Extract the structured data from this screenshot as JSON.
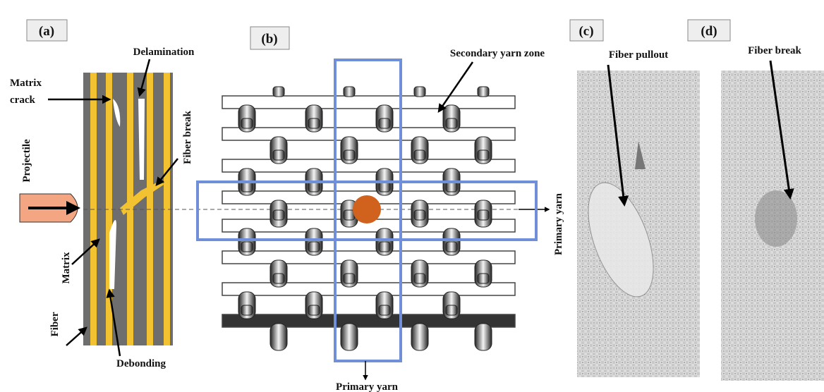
{
  "panels": [
    {
      "label": "(a)",
      "annotations": [
        "Delamination",
        "Matrix",
        "crack",
        "Fiber break",
        "Projectile",
        "Matrix",
        "Fiber",
        "Debonding"
      ]
    },
    {
      "label": "(b)",
      "annotations": [
        "Secondary yarn zone",
        "Primary yarn",
        "Primary yarn"
      ]
    },
    {
      "label": "(c)",
      "annotations": [
        "Fiber pullout"
      ]
    },
    {
      "label": "(d)",
      "annotations": [
        "Fiber break"
      ]
    }
  ]
}
